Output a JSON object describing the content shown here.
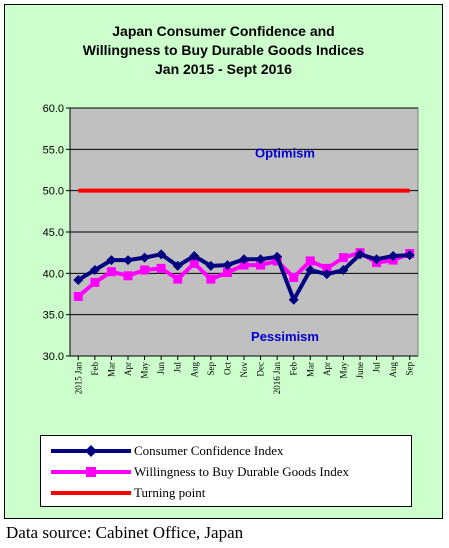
{
  "colors": {
    "background": "#ccffcc",
    "plot_area": "#c0c0c0",
    "consumer_confidence": "#000080",
    "durable_goods": "#ff00ff",
    "turning_point": "#ff0000",
    "annotation": "#0000cc"
  },
  "chart_data": {
    "type": "line",
    "title": [
      "Japan Consumer Confidence and",
      "Willingness to Buy Durable Goods Indices",
      "Jan 2015 - Sept 2016"
    ],
    "xlabel": "",
    "ylabel": "",
    "ylim": [
      30,
      60
    ],
    "yticks": [
      "30.0",
      "35.0",
      "40.0",
      "45.0",
      "50.0",
      "55.0",
      "60.0"
    ],
    "grid": true,
    "legend_position": "bottom",
    "categories": [
      "2015 Jan",
      "Feb",
      "Mar",
      "Apr",
      "May",
      "Jun",
      "Jul",
      "Aug",
      "Sep",
      "Oct",
      "Nov",
      "Dec",
      "2016 Jan",
      "Feb",
      "Mar",
      "Apr",
      "May",
      "June",
      "Jul",
      "Aug",
      "Sep"
    ],
    "series": [
      {
        "name": "Consumer Confidence Index",
        "values": [
          39.2,
          40.4,
          41.6,
          41.6,
          41.9,
          42.3,
          40.9,
          42.1,
          40.9,
          41.0,
          41.7,
          41.7,
          42.0,
          36.8,
          40.4,
          39.9,
          40.4,
          42.3,
          41.7,
          42.1,
          42.2
        ]
      },
      {
        "name": "Willingness to Buy Durable Goods Index",
        "values": [
          37.2,
          38.9,
          40.2,
          39.7,
          40.4,
          40.6,
          39.3,
          41.2,
          39.3,
          40.1,
          41.0,
          41.0,
          41.5,
          39.5,
          41.5,
          40.6,
          41.9,
          42.5,
          41.3,
          41.6,
          42.4
        ]
      },
      {
        "name": "Turning point",
        "values": [
          50,
          50,
          50,
          50,
          50,
          50,
          50,
          50,
          50,
          50,
          50,
          50,
          50,
          50,
          50,
          50,
          50,
          50,
          50,
          50,
          50
        ]
      }
    ],
    "annotations": [
      {
        "text": "Optimism",
        "y": 54.6
      },
      {
        "text": "Pessimism",
        "y": 32.4
      }
    ]
  },
  "source": "Data source: Cabinet Office, Japan"
}
